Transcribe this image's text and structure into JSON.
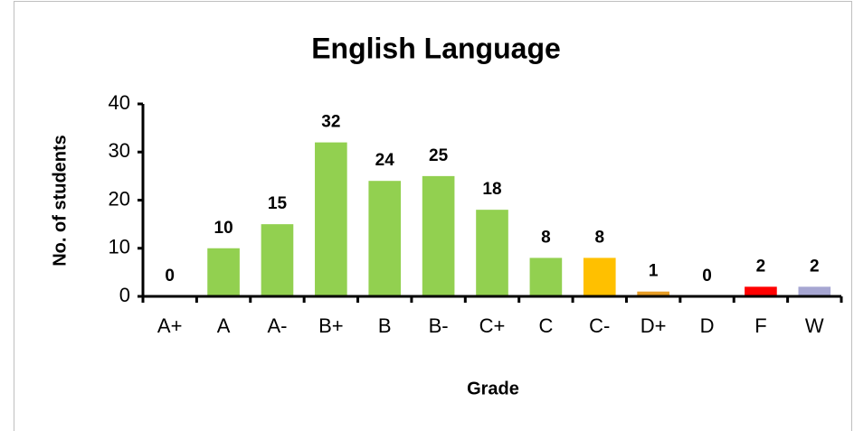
{
  "chart_data": {
    "type": "bar",
    "title": "English Language",
    "x_label": "Grade",
    "y_label": "No. of students",
    "categories": [
      "A+",
      "A",
      "A-",
      "B+",
      "B",
      "B-",
      "C+",
      "C",
      "C-",
      "D+",
      "D",
      "F",
      "W"
    ],
    "values": [
      0,
      10,
      15,
      32,
      24,
      25,
      18,
      8,
      8,
      1,
      0,
      2,
      2
    ],
    "colors": [
      "#92d050",
      "#92d050",
      "#92d050",
      "#92d050",
      "#92d050",
      "#92d050",
      "#92d050",
      "#92d050",
      "#ffc000",
      "#e69c24",
      "#92d050",
      "#ff0000",
      "#a6a6d2"
    ],
    "ylim": [
      0,
      40
    ],
    "yticks": [
      0,
      10,
      20,
      30,
      40
    ],
    "grid": false
  }
}
